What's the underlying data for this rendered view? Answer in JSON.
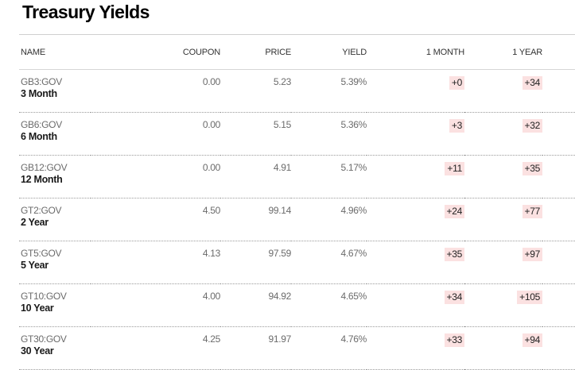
{
  "title": "Treasury Yields",
  "columns": {
    "name": "NAME",
    "coupon": "COUPON",
    "price": "PRICE",
    "yield": "YIELD",
    "one_month": "1 MONTH",
    "one_year": "1 YEAR"
  },
  "rows": [
    {
      "ticker": "GB3:GOV",
      "tenor": "3 Month",
      "coupon": "0.00",
      "price": "5.23",
      "yield": "5.39%",
      "one_month": "+0",
      "one_year": "+34"
    },
    {
      "ticker": "GB6:GOV",
      "tenor": "6 Month",
      "coupon": "0.00",
      "price": "5.15",
      "yield": "5.36%",
      "one_month": "+3",
      "one_year": "+32"
    },
    {
      "ticker": "GB12:GOV",
      "tenor": "12 Month",
      "coupon": "0.00",
      "price": "4.91",
      "yield": "5.17%",
      "one_month": "+11",
      "one_year": "+35"
    },
    {
      "ticker": "GT2:GOV",
      "tenor": "2 Year",
      "coupon": "4.50",
      "price": "99.14",
      "yield": "4.96%",
      "one_month": "+24",
      "one_year": "+77"
    },
    {
      "ticker": "GT5:GOV",
      "tenor": "5 Year",
      "coupon": "4.13",
      "price": "97.59",
      "yield": "4.67%",
      "one_month": "+35",
      "one_year": "+97"
    },
    {
      "ticker": "GT10:GOV",
      "tenor": "10 Year",
      "coupon": "4.00",
      "price": "94.92",
      "yield": "4.65%",
      "one_month": "+34",
      "one_year": "+105"
    },
    {
      "ticker": "GT30:GOV",
      "tenor": "30 Year",
      "coupon": "4.25",
      "price": "91.97",
      "yield": "4.76%",
      "one_month": "+33",
      "one_year": "+94"
    }
  ],
  "colors": {
    "change_positive_bg": "#fbe1e1"
  }
}
